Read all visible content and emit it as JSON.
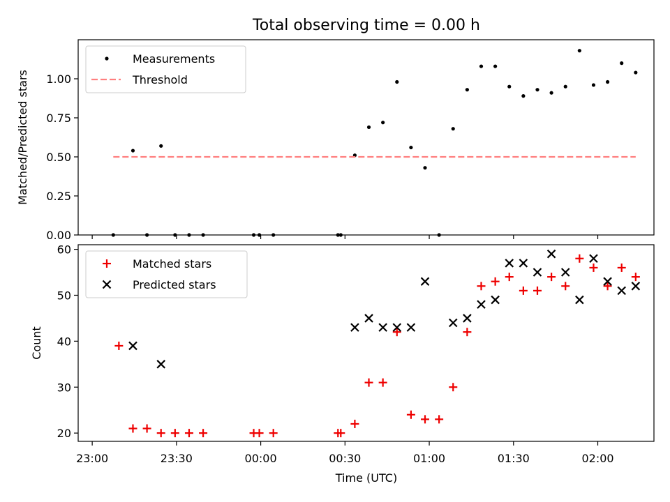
{
  "title": "Total observing time = 0.00 h",
  "x_axis": {
    "label": "Time (UTC)",
    "ticks": [
      {
        "label": "23:00",
        "min": 0
      },
      {
        "label": "23:30",
        "min": 30
      },
      {
        "label": "00:00",
        "min": 60
      },
      {
        "label": "00:30",
        "min": 90
      },
      {
        "label": "01:00",
        "min": 120
      },
      {
        "label": "01:30",
        "min": 150
      },
      {
        "label": "02:00",
        "min": 180
      }
    ]
  },
  "colors": {
    "measurements": "#000000",
    "threshold": "#ff7f7f",
    "matched": "#ee0000",
    "predicted": "#000000"
  },
  "chart_data": [
    {
      "type": "scatter",
      "ylabel": "Matched/Predicted stars",
      "ylim": [
        0,
        1.25
      ],
      "yticks": [
        "0.00",
        "0.25",
        "0.50",
        "0.75",
        "1.00"
      ],
      "legend": "top-left",
      "series": [
        {
          "name": "Measurements",
          "marker": "dot",
          "points": [
            [
              7.5,
              0.0
            ],
            [
              14.5,
              0.54
            ],
            [
              19.5,
              0.0
            ],
            [
              24.5,
              0.57
            ],
            [
              29.5,
              0.0
            ],
            [
              34.5,
              0.0
            ],
            [
              39.5,
              0.0
            ],
            [
              57.5,
              0.0
            ],
            [
              59.5,
              0.0
            ],
            [
              64.5,
              0.0
            ],
            [
              87.5,
              0.0
            ],
            [
              88.5,
              0.0
            ],
            [
              93.5,
              0.51
            ],
            [
              98.5,
              0.69
            ],
            [
              103.5,
              0.72
            ],
            [
              108.5,
              0.98
            ],
            [
              113.5,
              0.56
            ],
            [
              118.5,
              0.43
            ],
            [
              123.5,
              0.0
            ],
            [
              128.5,
              0.68
            ],
            [
              133.5,
              0.93
            ],
            [
              138.5,
              1.08
            ],
            [
              143.5,
              1.08
            ],
            [
              148.5,
              0.95
            ],
            [
              153.5,
              0.89
            ],
            [
              158.5,
              0.93
            ],
            [
              163.5,
              0.91
            ],
            [
              168.5,
              0.95
            ],
            [
              173.5,
              1.18
            ],
            [
              178.5,
              0.96
            ],
            [
              183.5,
              0.98
            ],
            [
              188.5,
              1.1
            ],
            [
              193.5,
              1.04
            ]
          ]
        },
        {
          "name": "Threshold",
          "type": "line",
          "style": "dashed",
          "x": [
            7.5,
            193.5
          ],
          "y": [
            0.5,
            0.5
          ]
        }
      ]
    },
    {
      "type": "scatter",
      "ylabel": "Count",
      "ylim": [
        18.2,
        61
      ],
      "yticks": [
        "20",
        "30",
        "40",
        "50",
        "60"
      ],
      "xlabel": "Time (UTC)",
      "legend": "top-left",
      "series": [
        {
          "name": "Matched stars",
          "marker": "plus",
          "points": [
            [
              9.5,
              39
            ],
            [
              14.5,
              21
            ],
            [
              19.5,
              21
            ],
            [
              24.5,
              20
            ],
            [
              29.5,
              20
            ],
            [
              34.5,
              20
            ],
            [
              39.5,
              20
            ],
            [
              57.5,
              20
            ],
            [
              59.5,
              20
            ],
            [
              64.5,
              20
            ],
            [
              87.5,
              20
            ],
            [
              88.5,
              20
            ],
            [
              93.5,
              22
            ],
            [
              98.5,
              31
            ],
            [
              103.5,
              31
            ],
            [
              108.5,
              42
            ],
            [
              113.5,
              24
            ],
            [
              118.5,
              23
            ],
            [
              123.5,
              23
            ],
            [
              128.5,
              30
            ],
            [
              133.5,
              42
            ],
            [
              138.5,
              52
            ],
            [
              143.5,
              53
            ],
            [
              148.5,
              54
            ],
            [
              153.5,
              51
            ],
            [
              158.5,
              51
            ],
            [
              163.5,
              54
            ],
            [
              168.5,
              52
            ],
            [
              173.5,
              58
            ],
            [
              178.5,
              56
            ],
            [
              183.5,
              52
            ],
            [
              188.5,
              56
            ],
            [
              193.5,
              54
            ]
          ]
        },
        {
          "name": "Predicted stars",
          "marker": "x",
          "points": [
            [
              14.5,
              39
            ],
            [
              24.5,
              35
            ],
            [
              93.5,
              43
            ],
            [
              98.5,
              45
            ],
            [
              103.5,
              43
            ],
            [
              108.5,
              43
            ],
            [
              113.5,
              43
            ],
            [
              118.5,
              53
            ],
            [
              128.5,
              44
            ],
            [
              133.5,
              45
            ],
            [
              138.5,
              48
            ],
            [
              143.5,
              49
            ],
            [
              148.5,
              57
            ],
            [
              153.5,
              57
            ],
            [
              158.5,
              55
            ],
            [
              163.5,
              59
            ],
            [
              168.5,
              55
            ],
            [
              173.5,
              49
            ],
            [
              178.5,
              58
            ],
            [
              183.5,
              53
            ],
            [
              188.5,
              51
            ],
            [
              193.5,
              52
            ]
          ]
        }
      ]
    }
  ]
}
